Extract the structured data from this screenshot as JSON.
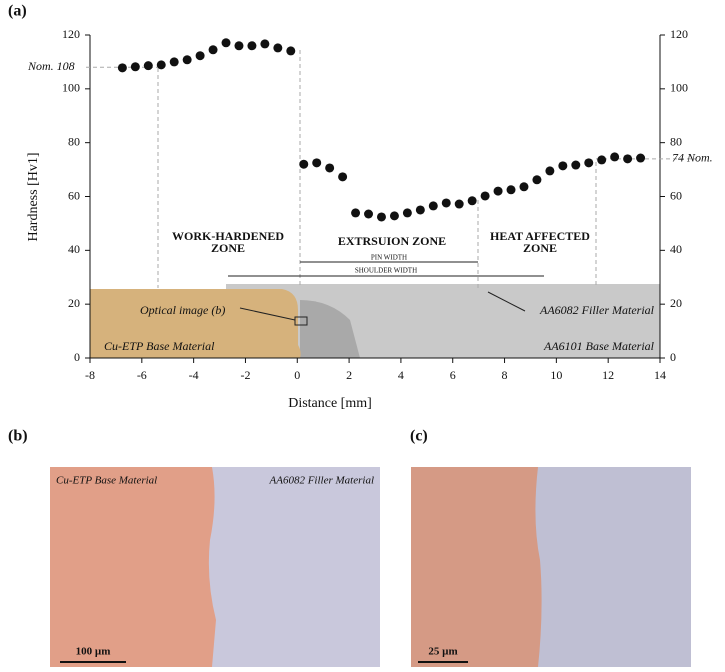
{
  "chart_data": {
    "type": "scatter",
    "panel_label": "(a)",
    "x_label": "Distance [mm]",
    "y_label": "Hardness [Hv1]",
    "xlim": [
      -8,
      14
    ],
    "xticks": [
      -8,
      -6,
      -4,
      -2,
      0,
      2,
      4,
      6,
      8,
      10,
      12,
      14
    ],
    "ylim": [
      0,
      120
    ],
    "yticks": [
      0,
      20,
      40,
      60,
      80,
      100,
      120
    ],
    "color": "#111111",
    "x": [
      -6.75,
      -6.25,
      -5.75,
      -5.25,
      -4.75,
      -4.25,
      -3.75,
      -3.25,
      -2.75,
      -2.25,
      -1.75,
      -1.25,
      -0.75,
      -0.25,
      0.25,
      0.75,
      1.25,
      1.75,
      2.25,
      2.75,
      3.25,
      3.75,
      4.25,
      4.75,
      5.25,
      5.75,
      6.25,
      6.75,
      7.25,
      7.75,
      8.25,
      8.75,
      9.25,
      9.75,
      10.25,
      10.75,
      11.25,
      11.75,
      12.25,
      12.75,
      13.25
    ],
    "values": [
      107.8,
      108.2,
      108.6,
      108.9,
      110,
      110.8,
      112.3,
      114.5,
      117.1,
      116,
      116,
      116.7,
      115.2,
      114.1,
      72,
      72.5,
      70.6,
      67.3,
      53.9,
      53.5,
      52.4,
      52.8,
      53.9,
      55,
      56.5,
      57.6,
      57.2,
      58.4,
      60.2,
      62,
      62.5,
      63.6,
      66.2,
      69.5,
      71.4,
      71.7,
      72.5,
      73.6,
      74.7,
      74,
      74.3
    ],
    "reference_lines": [
      {
        "value": 108,
        "label": "Nom. 108"
      },
      {
        "value": 74,
        "label": "74 Nom."
      }
    ],
    "zones": [
      [
        "WORK-HARDENED",
        "ZONE"
      ],
      [
        "EXTRSUION ZONE"
      ],
      [
        "HEAT AFFECTED",
        "ZONE"
      ]
    ],
    "dimensions": [
      "PIN WIDTH",
      "SHOULDER WIDTH"
    ],
    "image_labels": [
      "Optical image (b)",
      "AA6082 Filler Material",
      "Cu-ETP Base Material",
      "AA6101 Base Material"
    ]
  },
  "micrographs": [
    {
      "panel_label": "(b)",
      "left_label": "Cu-ETP Base Material",
      "right_label": "AA6082 Filler Material",
      "scale_bar": "100 µm"
    },
    {
      "panel_label": "(c)",
      "scale_bar": "25 µm"
    }
  ]
}
